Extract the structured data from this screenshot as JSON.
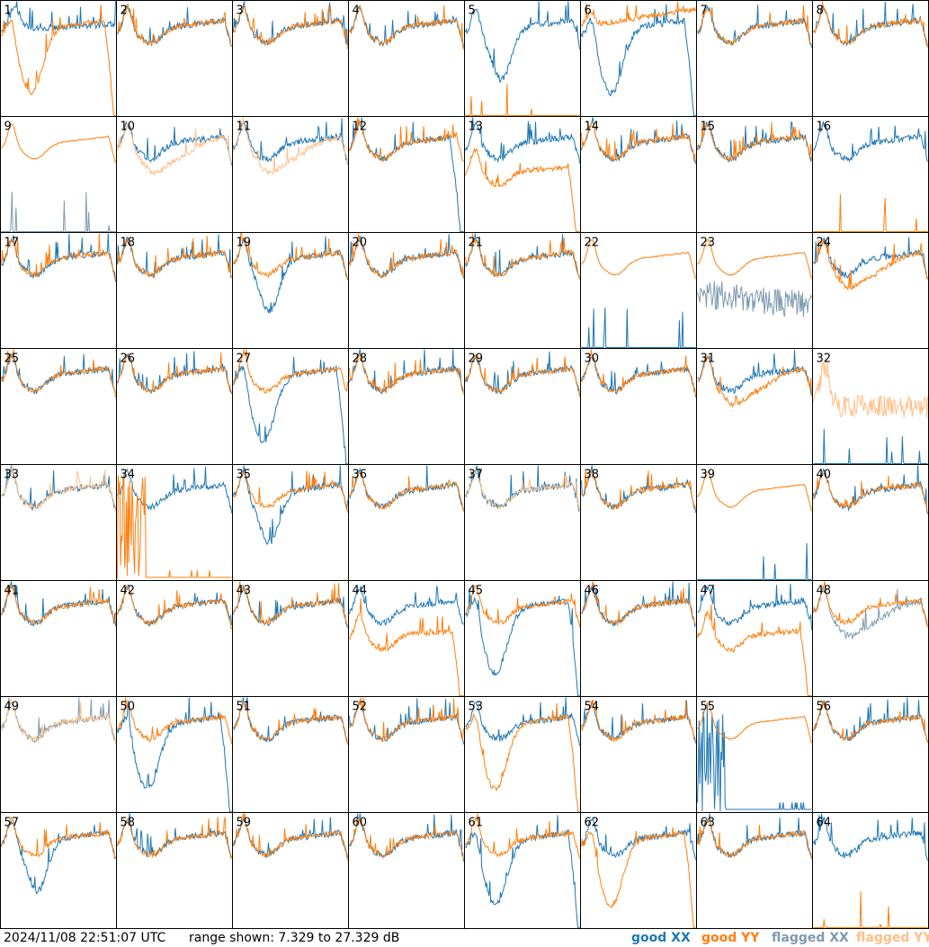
{
  "chart_data": {
    "type": "line",
    "layout": "8x8 small multiples",
    "panels": [
      "1",
      "2",
      "3",
      "4",
      "5",
      "6",
      "7",
      "8",
      "9",
      "10",
      "11",
      "12",
      "13",
      "14",
      "15",
      "16",
      "17",
      "18",
      "19",
      "20",
      "21",
      "22",
      "23",
      "24",
      "25",
      "26",
      "27",
      "28",
      "29",
      "30",
      "31",
      "32",
      "33",
      "34",
      "35",
      "36",
      "37",
      "38",
      "39",
      "40",
      "41",
      "42",
      "43",
      "44",
      "45",
      "46",
      "47",
      "48",
      "49",
      "50",
      "51",
      "52",
      "53",
      "54",
      "55",
      "56",
      "57",
      "58",
      "59",
      "60",
      "61",
      "62",
      "63",
      "64"
    ],
    "ylim": [
      7.329,
      27.329
    ],
    "yunit": "dB",
    "series": [
      {
        "name": "good XX",
        "color": "#1f77b4"
      },
      {
        "name": "good YY",
        "color": "#ff7f0e"
      },
      {
        "name": "flagged XX",
        "color": "#7f9bb0"
      },
      {
        "name": "flagged YY",
        "color": "#ffbf87"
      }
    ],
    "panel_flags": {
      "9": [
        "xx"
      ],
      "10": [
        "yy"
      ],
      "11": [
        "yy"
      ],
      "23": [
        "xx"
      ],
      "32": [
        "yy"
      ],
      "33": [
        "yy"
      ],
      "37": [
        "yy"
      ],
      "48": [
        "xx"
      ],
      "49": [
        "xx",
        "yy"
      ]
    },
    "panel_shapes": {
      "1": {
        "xx": "dip_hi",
        "yy": "dip_drop"
      },
      "5": {
        "xx": "dip",
        "yy": "spike"
      },
      "6": {
        "xx": "dip_drop",
        "yy": "rise"
      },
      "9": {
        "xx": "spike",
        "yy": "smooth"
      },
      "10": {
        "xx": "normal",
        "yy": "low"
      },
      "11": {
        "xx": "normal",
        "yy": "low"
      },
      "12": {
        "xx": "drop",
        "yy": "normal"
      },
      "13": {
        "xx": "normal",
        "yy": "low_drop"
      },
      "16": {
        "xx": "normal",
        "yy": "spike"
      },
      "19": {
        "xx": "dip",
        "yy": "normal"
      },
      "22": {
        "xx": "spike",
        "yy": "smooth"
      },
      "23": {
        "xx": "noisy_low",
        "yy": "smooth"
      },
      "24": {
        "xx": "normal",
        "yy": "low"
      },
      "27": {
        "xx": "dip_drop",
        "yy": "normal"
      },
      "31": {
        "xx": "normal",
        "yy": "low"
      },
      "32": {
        "xx": "spike",
        "yy": "noisy_high"
      },
      "34": {
        "xx": "normal",
        "yy": "burst"
      },
      "35": {
        "xx": "dip",
        "yy": "normal"
      },
      "39": {
        "xx": "spike",
        "yy": "smooth"
      },
      "44": {
        "xx": "normal",
        "yy": "low_drop"
      },
      "45": {
        "xx": "dip_drop",
        "yy": "normal"
      },
      "47": {
        "xx": "normal",
        "yy": "low_drop"
      },
      "48": {
        "xx": "low",
        "yy": "normal"
      },
      "50": {
        "xx": "dip_drop",
        "yy": "normal"
      },
      "53": {
        "xx": "normal",
        "yy": "dip_drop"
      },
      "55": {
        "xx": "burst",
        "yy": "smooth"
      },
      "57": {
        "xx": "dip",
        "yy": "normal"
      },
      "61": {
        "xx": "dip_drop",
        "yy": "normal"
      },
      "62": {
        "xx": "normal",
        "yy": "dip_drop"
      },
      "64": {
        "xx": "normal",
        "yy": "spike"
      }
    }
  },
  "footer": {
    "timestamp": "2024/11/08 22:51:07 UTC",
    "range": "range shown: 7.329 to 27.329 dB"
  },
  "legend": {
    "good_xx": "good XX",
    "good_yy": "good YY",
    "flagged_xx": "flagged XX",
    "flagged_yy": "flagged YY"
  }
}
